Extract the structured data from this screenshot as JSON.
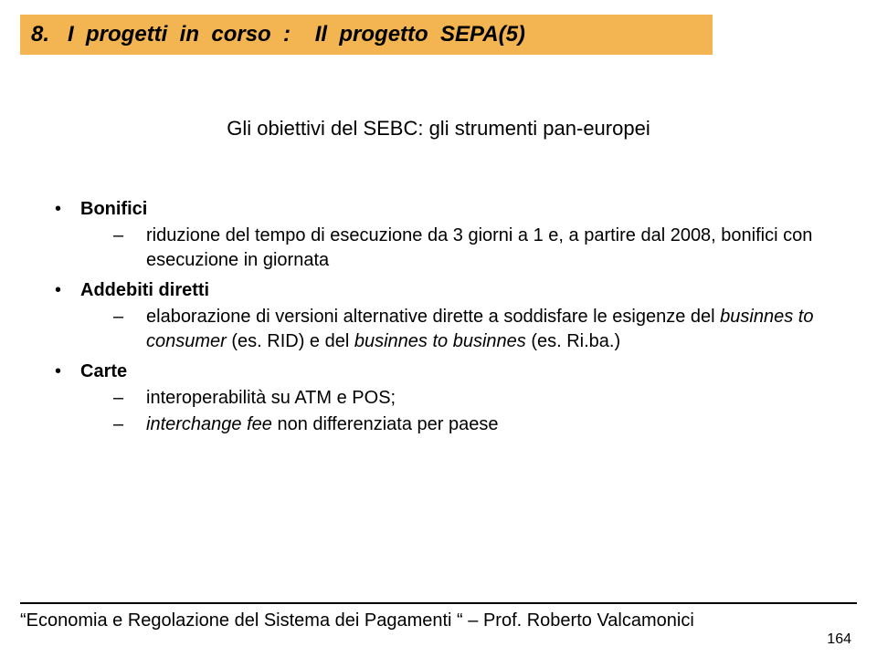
{
  "colors": {
    "title_bg": "#f2b552",
    "page_bg": "#ffffff",
    "text": "#000000",
    "rule": "#000000"
  },
  "title": "8.   I  progetti  in  corso  :    Il  progetto  SEPA(5)",
  "subtitle": "Gli obiettivi del SEBC: gli strumenti pan-europei",
  "bullets": {
    "b1": {
      "label": "Bonifici",
      "sub1": "riduzione del tempo di esecuzione da 3 giorni a 1 e, a partire dal 2008, bonifici con esecuzione in giornata"
    },
    "b2": {
      "label": "Addebiti diretti",
      "sub1_a": "elaborazione di versioni alternative dirette a  soddisfare le esigenze del ",
      "sub1_b": "businnes to consumer",
      "sub1_c": " (es. RID) e del ",
      "sub1_d": "businnes to businnes",
      "sub1_e": " (es. Ri.ba.)"
    },
    "b3": {
      "label": "Carte",
      "sub1": "interoperabilità su ATM e POS;",
      "sub2_a": "interchange fee",
      "sub2_b": " non differenziata per paese"
    }
  },
  "footer": "“Economia e Regolazione del Sistema dei Pagamenti “ – Prof. Roberto Valcamonici",
  "page": "164"
}
